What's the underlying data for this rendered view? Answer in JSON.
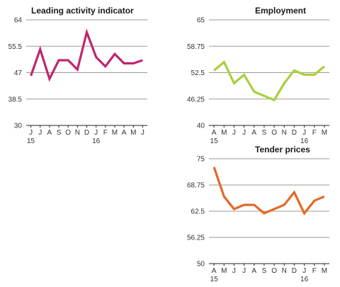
{
  "chart_data": [
    {
      "type": "line",
      "title": "Leading activity indicator",
      "x": [
        "J",
        "J",
        "A",
        "S",
        "O",
        "N",
        "D",
        "J",
        "F",
        "M",
        "A",
        "M",
        "J"
      ],
      "year_labels": [
        "15",
        "16"
      ],
      "yticks": [
        "64",
        "55.5",
        "47",
        "38.5",
        "30"
      ],
      "ylim": [
        30,
        64
      ],
      "color": "#c0266d",
      "series": [
        {
          "values": [
            46,
            54.5,
            45,
            51,
            51,
            48,
            60,
            52,
            49,
            53,
            50,
            50,
            51
          ]
        }
      ]
    },
    {
      "type": "line",
      "title": "Employment",
      "x": [
        "A",
        "M",
        "J",
        "J",
        "A",
        "S",
        "O",
        "N",
        "D",
        "J",
        "F",
        "M"
      ],
      "year_labels": [
        "15",
        "16"
      ],
      "yticks": [
        "65",
        "58.75",
        "52.5",
        "46.25",
        "40"
      ],
      "ylim": [
        40,
        65
      ],
      "color": "#a8cf3e",
      "series": [
        {
          "values": [
            53,
            55,
            50,
            52,
            48,
            47,
            46,
            50,
            53,
            52,
            52,
            54
          ]
        }
      ]
    },
    {
      "type": "line",
      "title": "Tender prices",
      "x": [
        "A",
        "M",
        "J",
        "J",
        "A",
        "S",
        "O",
        "N",
        "D",
        "J",
        "F",
        "M"
      ],
      "year_labels": [
        "15",
        "16"
      ],
      "yticks": [
        "75",
        "68.75",
        "62.5",
        "56.25",
        "50"
      ],
      "ylim": [
        50,
        75
      ],
      "color": "#e4682a",
      "series": [
        {
          "values": [
            73,
            66,
            63,
            64,
            64,
            62,
            63,
            64,
            67,
            62,
            65,
            66
          ]
        }
      ]
    }
  ]
}
